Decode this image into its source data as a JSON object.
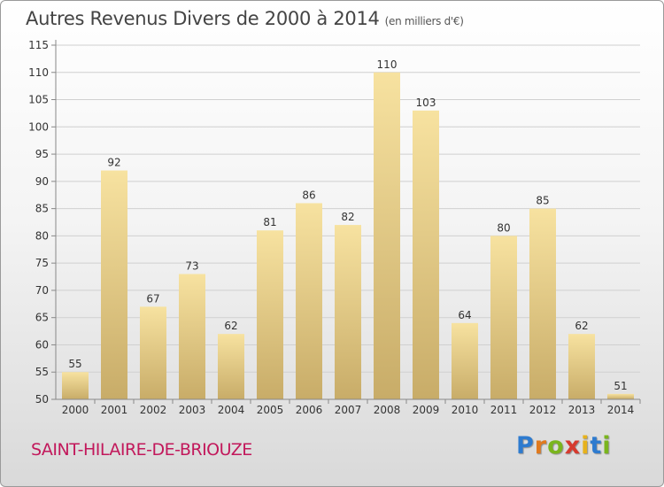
{
  "header": {
    "title": "Autres Revenus Divers de 2000 à 2014",
    "unit": "(en milliers d'€)"
  },
  "footer": {
    "commune": "SAINT-HILAIRE-DE-BRIOUZE",
    "logo": "Proxiti"
  },
  "colors": {
    "bar_light": "#f7e2a0",
    "bar_dark": "#c8ac68",
    "commune_text": "#c2185b"
  },
  "chart_data": {
    "type": "bar",
    "categories": [
      "2000",
      "2001",
      "2002",
      "2003",
      "2004",
      "2005",
      "2006",
      "2007",
      "2008",
      "2009",
      "2010",
      "2011",
      "2012",
      "2013",
      "2014"
    ],
    "values": [
      55,
      92,
      67,
      73,
      62,
      81,
      86,
      82,
      110,
      103,
      64,
      80,
      85,
      62,
      51
    ],
    "ylim": [
      50,
      115
    ],
    "yticks": [
      50,
      55,
      60,
      65,
      70,
      75,
      80,
      85,
      90,
      95,
      100,
      105,
      110,
      115
    ],
    "grid": true,
    "data_labels": true
  }
}
